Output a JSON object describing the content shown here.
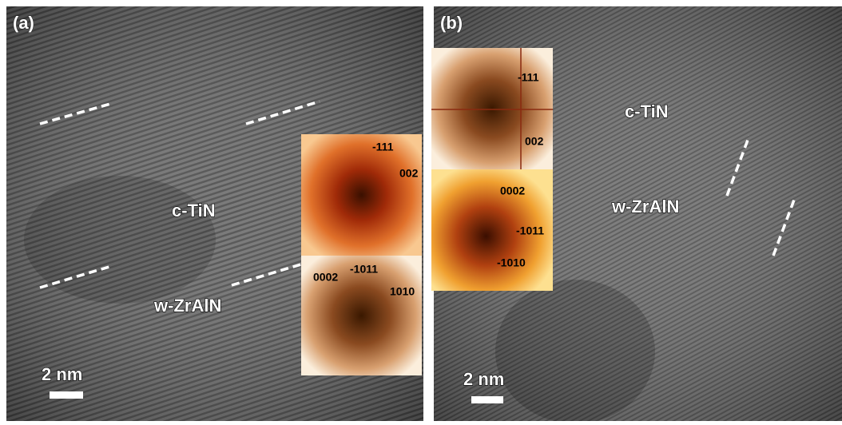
{
  "panels": [
    {
      "label": "(a)",
      "phase_top": "c-TiN",
      "phase_bottom": "w-ZrAlN",
      "scale_bar": "2 nm",
      "fft_top": [
        "-111",
        "002"
      ],
      "fft_bottom": [
        "0002",
        "-1011",
        "1010"
      ]
    },
    {
      "label": "(b)",
      "phase_top": "c-TiN",
      "phase_bottom": "w-ZrAlN",
      "scale_bar": "2 nm",
      "fft_top": [
        "-111",
        "002"
      ],
      "fft_bottom": [
        "0002",
        "-1011",
        "-1010"
      ]
    }
  ]
}
